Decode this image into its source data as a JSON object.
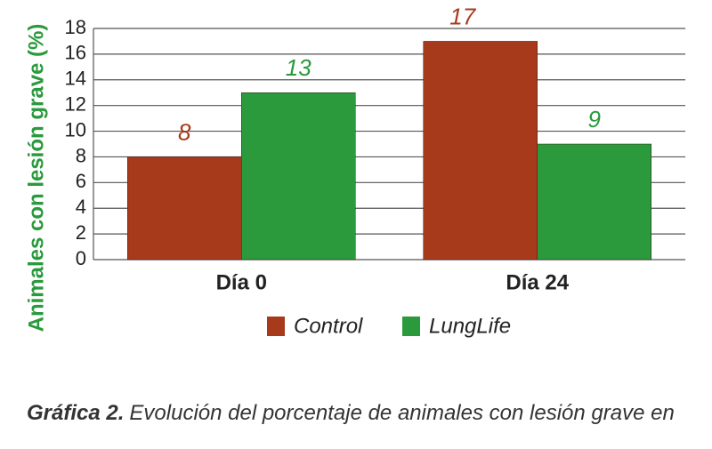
{
  "chart_data": {
    "type": "bar",
    "y_label": "Animales con lesión grave (%)",
    "categories": [
      "Día 0",
      "Día 24"
    ],
    "series": [
      {
        "name": "Control",
        "color": "#a83a1c",
        "values": [
          8,
          17
        ]
      },
      {
        "name": "LungLife",
        "color": "#2a9a3c",
        "values": [
          13,
          9
        ]
      }
    ],
    "ylim": [
      0,
      18
    ],
    "yticks": [
      0,
      2,
      4,
      6,
      8,
      10,
      12,
      14,
      16,
      18
    ],
    "grid": true
  },
  "caption": {
    "label": "Gráfica 2.",
    "text": "Evolución del porcentaje de animales con lesión grave en"
  }
}
